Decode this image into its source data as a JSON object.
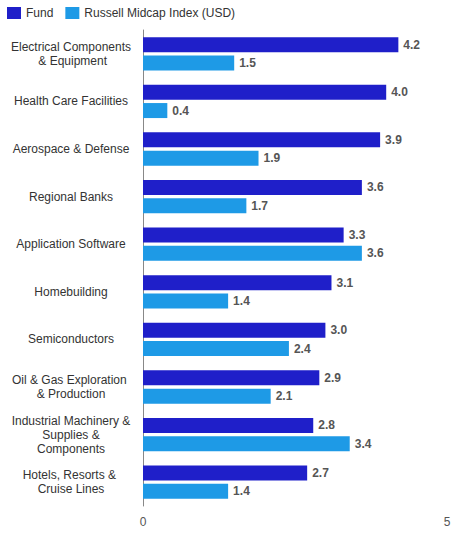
{
  "chart_data": {
    "type": "bar",
    "orientation": "horizontal",
    "categories": [
      "Electrical Components & Equipment",
      "Health Care Facilities",
      "Aerospace & Defense",
      "Regional Banks",
      "Application Software",
      "Homebuilding",
      "Semiconductors",
      "Oil & Gas Exploration & Production",
      "Industrial Machinery & Supplies & Components",
      "Hotels, Resorts & Cruise Lines"
    ],
    "series": [
      {
        "name": "Fund",
        "color": "#1f1fc9",
        "values": [
          4.2,
          4.0,
          3.9,
          3.6,
          3.3,
          3.1,
          3.0,
          2.9,
          2.8,
          2.7
        ],
        "value_labels": [
          "4.2",
          "4.0",
          "3.9",
          "3.6",
          "3.3",
          "3.1",
          "3.0",
          "2.9",
          "2.8",
          "2.7"
        ]
      },
      {
        "name": "Russell Midcap Index (USD)",
        "color": "#1e9ae6",
        "values": [
          1.5,
          0.4,
          1.9,
          1.7,
          3.6,
          1.4,
          2.4,
          2.1,
          3.4,
          1.4
        ],
        "value_labels": [
          "1.5",
          "0.4",
          "1.9",
          "1.7",
          "3.6",
          "1.4",
          "2.4",
          "2.1",
          "3.4",
          "1.4"
        ]
      }
    ],
    "xlim": [
      0,
      5
    ],
    "xticks": [
      0,
      5
    ],
    "grid": false,
    "legend": "top-left",
    "data_labels": true
  }
}
